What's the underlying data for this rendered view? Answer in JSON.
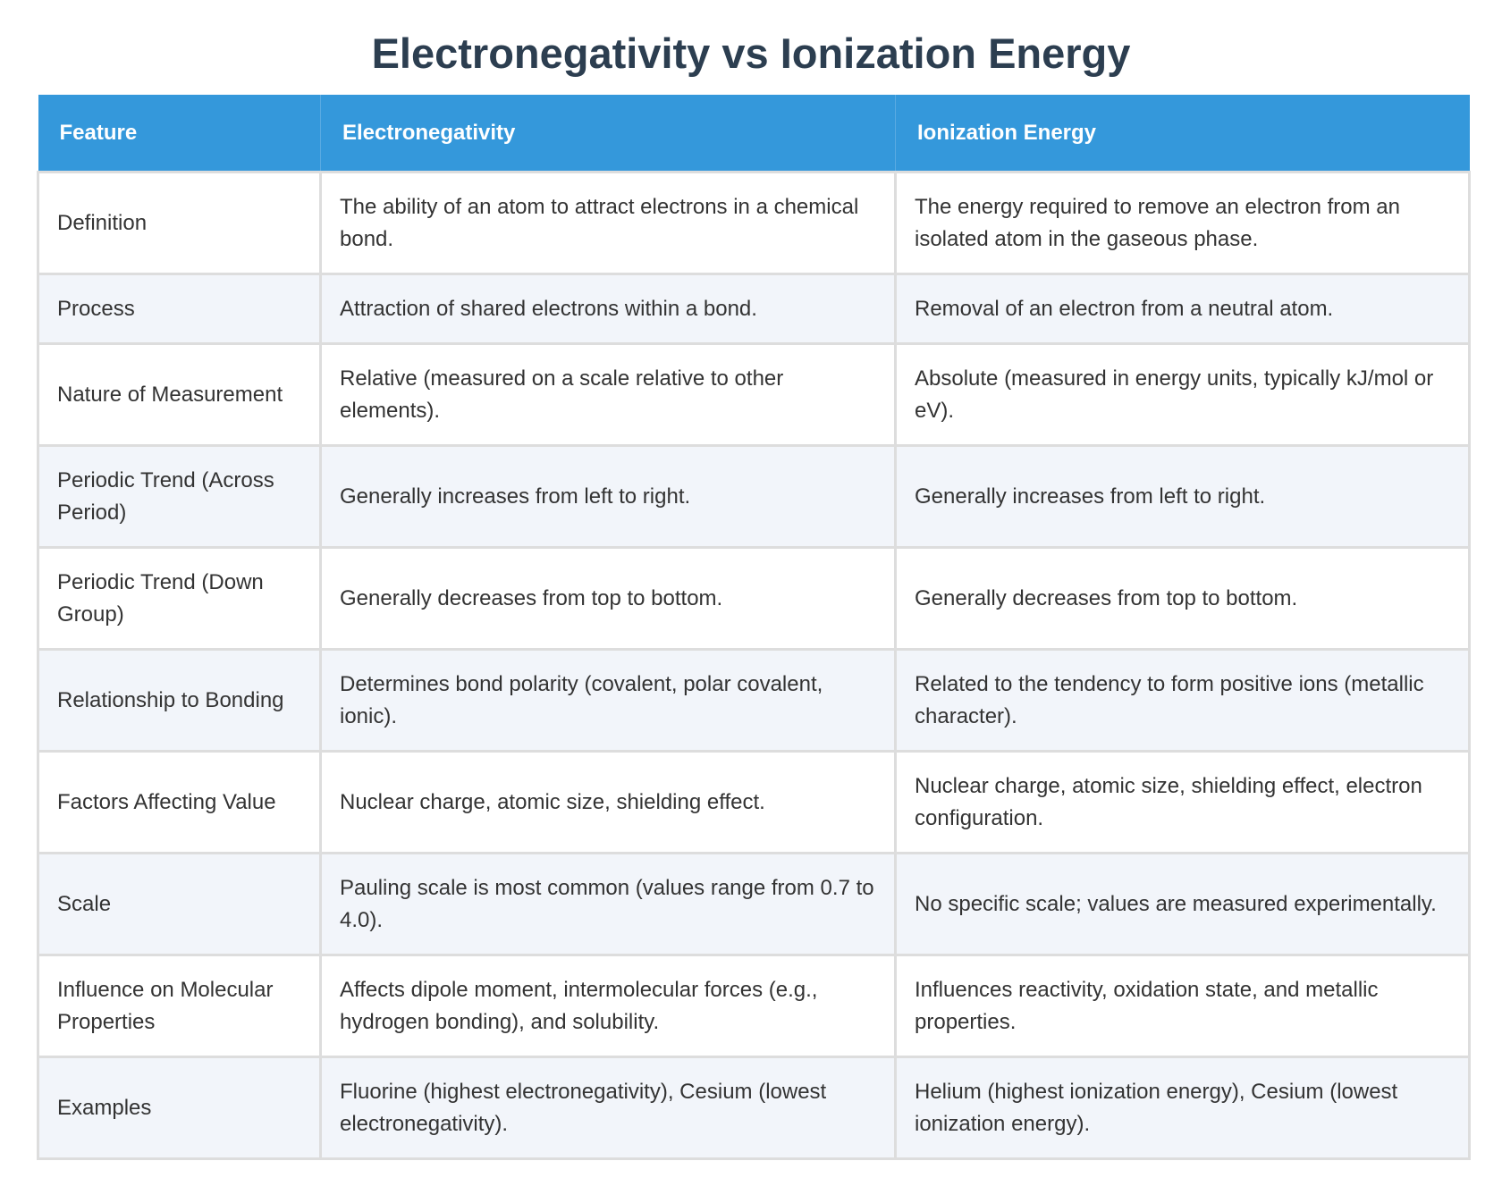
{
  "title": "Electronegativity vs Ionization Energy",
  "colors": {
    "header_bg": "#3498db",
    "title": "#2c3e50",
    "alt_row": "#f2f5fa"
  },
  "table": {
    "headers": [
      "Feature",
      "Electronegativity",
      "Ionization Energy"
    ],
    "rows": [
      [
        "Definition",
        "The ability of an atom to attract electrons in a chemical bond.",
        "The energy required to remove an electron from an isolated atom in the gaseous phase."
      ],
      [
        "Process",
        "Attraction of shared electrons within a bond.",
        "Removal of an electron from a neutral atom."
      ],
      [
        "Nature of Measurement",
        "Relative (measured on a scale relative to other elements).",
        "Absolute (measured in energy units, typically kJ/mol or eV)."
      ],
      [
        "Periodic Trend (Across Period)",
        "Generally increases from left to right.",
        "Generally increases from left to right."
      ],
      [
        "Periodic Trend (Down Group)",
        "Generally decreases from top to bottom.",
        "Generally decreases from top to bottom."
      ],
      [
        "Relationship to Bonding",
        "Determines bond polarity (covalent, polar covalent, ionic).",
        "Related to the tendency to form positive ions (metallic character)."
      ],
      [
        "Factors Affecting Value",
        "Nuclear charge, atomic size, shielding effect.",
        "Nuclear charge, atomic size, shielding effect, electron configuration."
      ],
      [
        "Scale",
        "Pauling scale is most common (values range from 0.7 to 4.0).",
        "No specific scale; values are measured experimentally."
      ],
      [
        "Influence on Molecular Properties",
        "Affects dipole moment, intermolecular forces (e.g., hydrogen bonding), and solubility.",
        "Influences reactivity, oxidation state, and metallic properties."
      ],
      [
        "Examples",
        "Fluorine (highest electronegativity), Cesium (lowest electronegativity).",
        "Helium (highest ionization energy), Cesium (lowest ionization energy)."
      ]
    ]
  }
}
